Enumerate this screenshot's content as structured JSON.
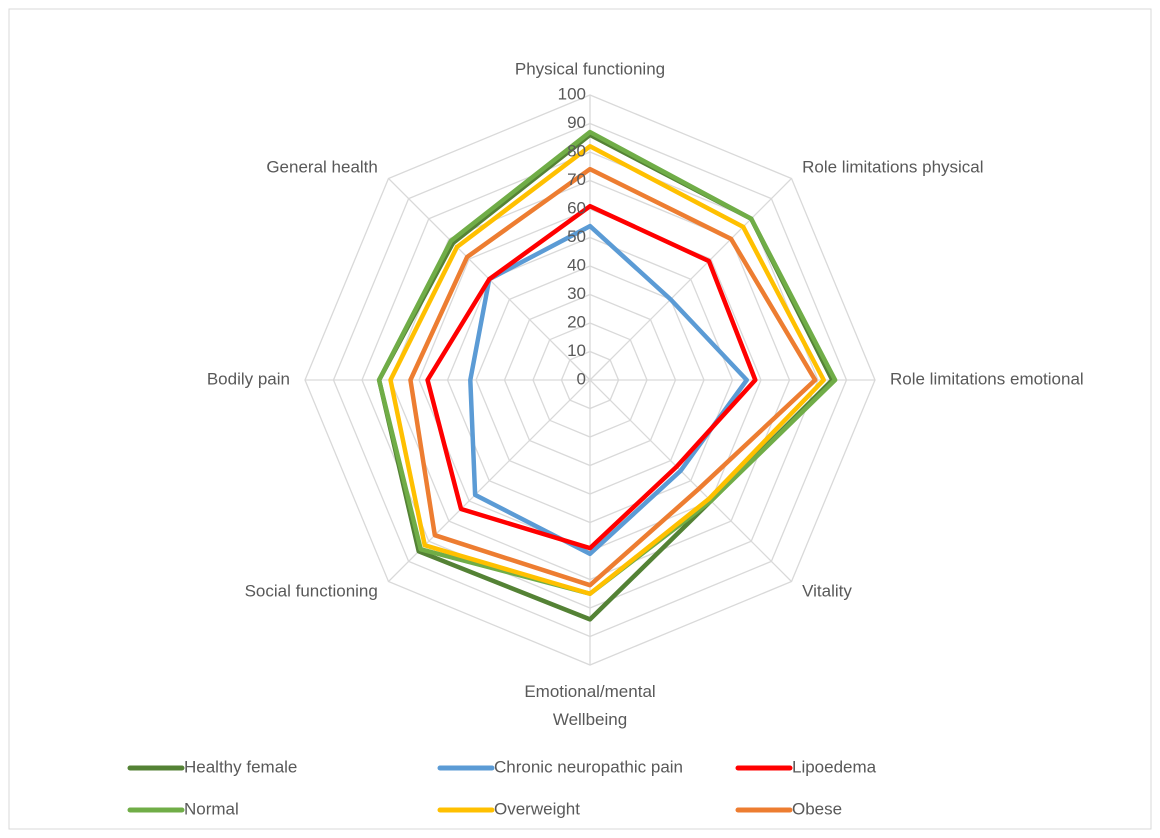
{
  "chart_data": {
    "type": "radar",
    "categories": [
      "Physical functioning",
      "Role limitations physical",
      "Role limitations emotional",
      "Vitality",
      "Emotional/mental Wellbeing",
      "Social functioning",
      "Bodily pain",
      "General health"
    ],
    "ylim": [
      0,
      100
    ],
    "yticks": [
      0,
      10,
      20,
      30,
      40,
      50,
      60,
      70,
      80,
      90,
      100
    ],
    "grid": true,
    "series": [
      {
        "name": "Healthy female",
        "color": "#548235",
        "values": [
          86,
          80,
          85,
          60,
          84,
          85,
          74,
          68
        ]
      },
      {
        "name": "Chronic neuropathic pain",
        "color": "#5b9bd5",
        "values": [
          54,
          40,
          55,
          45,
          61,
          57,
          42,
          50
        ]
      },
      {
        "name": "Lipoedema",
        "color": "#ff0000",
        "values": [
          61,
          59,
          58,
          43,
          59,
          64,
          57,
          50
        ]
      },
      {
        "name": "Normal",
        "color": "#70ad47",
        "values": [
          87,
          80,
          86,
          60,
          75,
          84,
          74,
          69
        ]
      },
      {
        "name": "Overweight",
        "color": "#ffc000",
        "values": [
          82,
          76,
          82,
          59,
          75,
          82,
          70,
          66
        ]
      },
      {
        "name": "Obese",
        "color": "#ed7d31",
        "values": [
          74,
          70,
          79,
          54,
          72,
          77,
          63,
          61
        ]
      }
    ]
  }
}
